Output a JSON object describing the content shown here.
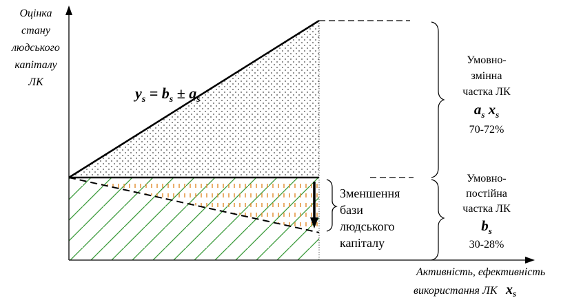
{
  "y_axis": {
    "label_lines": [
      "Оцінка",
      "стану",
      "людського",
      "капіталу",
      "ЛК"
    ]
  },
  "x_axis": {
    "label_line1": "Активність, ефективність",
    "label_line2": "використання ЛК",
    "label_symbol": "x",
    "label_symbol_sub": "s"
  },
  "formula": {
    "y": "y",
    "y_sub": "s",
    "eq": " = ",
    "b": "b",
    "b_sub": "s",
    "pm": " ± ",
    "a": "a",
    "a_sub": "s"
  },
  "variable_part": {
    "lines": [
      "Умовно-",
      "змінна",
      "частка ЛК"
    ],
    "symbol_a": "a",
    "symbol_a_sub": "s",
    "symbol_x": " x",
    "symbol_x_sub": "s",
    "percent": "70-72%"
  },
  "fixed_part": {
    "lines": [
      "Умовно-",
      "постійна",
      "частка ЛК"
    ],
    "symbol": "b",
    "symbol_sub": "s",
    "percent": "30-28%"
  },
  "reduction_label": {
    "lines": [
      "Зменшення",
      "бази",
      "людського",
      "капіталу"
    ]
  },
  "colors": {
    "hatch_green": "#3a9a3a",
    "hatch_orange": "#e08a2a",
    "dots": "#444444",
    "lines": "#000000"
  }
}
